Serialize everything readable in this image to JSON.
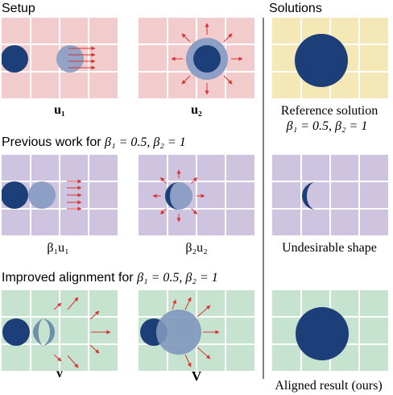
{
  "sections": {
    "setup": "Setup",
    "solutions": "Solutions",
    "previous_prefix": "Previous work for ",
    "improved_prefix": "Improved alignment for ",
    "beta_condition": "β₁ = 0.5, β₂ = 1"
  },
  "captions": {
    "u1": "u₁",
    "u2": "u₂",
    "b1u1": "β₁u₁",
    "b2u2": "β₂u₂",
    "v": "v",
    "V": "V",
    "reference_line1": "Reference solution",
    "reference_line2": "β₁ = 0.5, β₂ = 1",
    "undesirable": "Undesirable shape",
    "aligned": "Aligned result (ours)"
  },
  "colors": {
    "setup_bg": "#f2cccd",
    "previous_bg": "#cfc4df",
    "improved_bg": "#c6e3cf",
    "solution_bg": "#f4e8b6",
    "circle": "#1c3f7a",
    "arrow": "#d93030",
    "grid": "#ffffff"
  }
}
